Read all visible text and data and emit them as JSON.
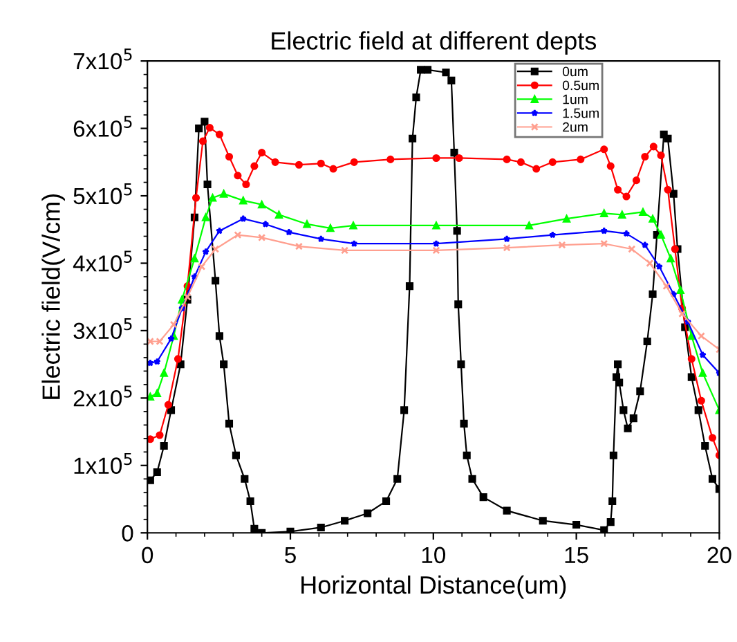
{
  "chart_data": {
    "type": "line",
    "title": "Electric field at different depts",
    "xlabel": "Horizontal Distance(um)",
    "ylabel": "Electric field(V/cm)",
    "xlim": [
      0,
      20
    ],
    "xticks": [
      0,
      5,
      10,
      15,
      20
    ],
    "ylim": [
      0,
      700000
    ],
    "yticks": [
      0,
      {
        "value": 100000,
        "label": "1x10$^{5}$"
      },
      {
        "value": 200000,
        "label": "2x10$^{5}$"
      },
      {
        "value": 300000,
        "label": "3x10$^{5}$"
      },
      {
        "value": 400000,
        "label": "4x10$^{5}$"
      },
      {
        "value": 500000,
        "label": "5x10$^{5}$"
      },
      {
        "value": 600000,
        "label": "6x10$^{5}$"
      },
      {
        "value": 700000,
        "label": "7x10$^{5}$"
      }
    ],
    "grid": false,
    "legend": "top right",
    "line_style": "solid",
    "series": [
      {
        "name": "0um",
        "color": "#000000",
        "marker": "square",
        "x": [
          0.1,
          0.34,
          0.58,
          0.83,
          1.16,
          1.4,
          1.65,
          1.8,
          2.0,
          2.1,
          2.38,
          2.52,
          2.67,
          2.86,
          3.1,
          3.4,
          3.6,
          3.74,
          4.0,
          5.0,
          6.07,
          6.9,
          7.7,
          8.35,
          8.74,
          8.98,
          9.17,
          9.27,
          9.4,
          9.56,
          9.8,
          10.44,
          10.63,
          10.73,
          10.83,
          10.87,
          10.97,
          11.07,
          11.17,
          11.36,
          11.75,
          12.57,
          13.83,
          15.0,
          15.97,
          16.2,
          16.26,
          16.3,
          16.4,
          16.45,
          16.5,
          16.65,
          16.8,
          17.0,
          17.23,
          17.48,
          17.67,
          17.82,
          18.06,
          18.2,
          18.4,
          18.54,
          18.8,
          19.03,
          19.27,
          19.5,
          19.76,
          20.0
        ],
        "values": [
          78000,
          90000,
          129000,
          182000,
          250000,
          346000,
          468000,
          600000,
          610000,
          517000,
          374000,
          292000,
          250000,
          162000,
          115000,
          80000,
          47000,
          6000,
          0,
          2000,
          8000,
          18000,
          29000,
          47000,
          80000,
          182000,
          366000,
          585000,
          646000,
          687000,
          687000,
          683000,
          671000,
          564000,
          448000,
          339000,
          250000,
          162000,
          115000,
          80000,
          53000,
          33000,
          18000,
          12000,
          4000,
          16000,
          47000,
          115000,
          231000,
          250000,
          223000,
          182000,
          155000,
          170000,
          210000,
          284000,
          354000,
          442000,
          591000,
          585000,
          503000,
          421000,
          305000,
          231000,
          182000,
          129000,
          80000,
          65000
        ]
      },
      {
        "name": "0.5um",
        "color": "#ff0000",
        "marker": "circle",
        "x": [
          0.1,
          0.43,
          0.73,
          1.07,
          1.4,
          1.7,
          1.94,
          2.18,
          2.52,
          2.86,
          3.16,
          3.45,
          3.74,
          4.0,
          4.47,
          5.3,
          6.07,
          6.5,
          7.23,
          8.5,
          10.1,
          10.9,
          12.57,
          13.06,
          13.6,
          14.17,
          15.15,
          15.97,
          16.2,
          16.45,
          16.75,
          17.1,
          17.4,
          17.7,
          17.96,
          18.2,
          18.45,
          18.7,
          19.03,
          19.37,
          19.76,
          20.0
        ],
        "values": [
          139000,
          145000,
          190000,
          258000,
          366000,
          497000,
          581000,
          601000,
          591000,
          558000,
          530000,
          517000,
          544000,
          564000,
          550000,
          546000,
          548000,
          540000,
          550000,
          554000,
          556000,
          556000,
          554000,
          550000,
          540000,
          550000,
          554000,
          569000,
          544000,
          509000,
          499000,
          523000,
          558000,
          573000,
          560000,
          509000,
          421000,
          333000,
          258000,
          196000,
          141000,
          115000
        ]
      },
      {
        "name": "1um",
        "color": "#00ff00",
        "marker": "triangle",
        "x": [
          0.1,
          0.34,
          0.58,
          0.92,
          1.21,
          1.65,
          2.04,
          2.28,
          2.67,
          3.35,
          4.0,
          4.6,
          5.58,
          6.4,
          7.2,
          10.1,
          13.35,
          14.66,
          15.97,
          16.6,
          17.33,
          17.67,
          17.96,
          18.3,
          18.64,
          19.03,
          19.42,
          20.0
        ],
        "values": [
          202000,
          207000,
          237000,
          292000,
          346000,
          407000,
          468000,
          497000,
          503000,
          493000,
          487000,
          472000,
          458000,
          452000,
          456000,
          456000,
          456000,
          466000,
          474000,
          472000,
          476000,
          466000,
          442000,
          407000,
          360000,
          292000,
          237000,
          182000
        ]
      },
      {
        "name": "1.5um",
        "color": "#0000ff",
        "marker": "star",
        "x": [
          0.1,
          0.34,
          0.83,
          1.21,
          1.65,
          2.04,
          2.52,
          3.35,
          4.13,
          4.95,
          6.07,
          7.23,
          10.1,
          12.57,
          14.17,
          15.97,
          16.75,
          17.4,
          17.9,
          18.4,
          18.9,
          19.42,
          20.0
        ],
        "values": [
          252000,
          254000,
          288000,
          333000,
          380000,
          417000,
          448000,
          466000,
          458000,
          446000,
          436000,
          429000,
          429000,
          436000,
          442000,
          448000,
          444000,
          427000,
          395000,
          354000,
          313000,
          264000,
          237000
        ]
      },
      {
        "name": "2um",
        "color": "#ff9f8f",
        "marker": "cross",
        "x": [
          0.1,
          0.43,
          0.92,
          1.4,
          1.9,
          2.38,
          3.16,
          4.0,
          5.3,
          6.9,
          10.1,
          12.57,
          14.5,
          15.97,
          16.94,
          17.57,
          18.15,
          18.7,
          19.37,
          20.0
        ],
        "values": [
          284000,
          284000,
          309000,
          350000,
          395000,
          421000,
          442000,
          438000,
          425000,
          419000,
          419000,
          423000,
          427000,
          429000,
          421000,
          400000,
          366000,
          325000,
          292000,
          272000
        ]
      }
    ]
  }
}
